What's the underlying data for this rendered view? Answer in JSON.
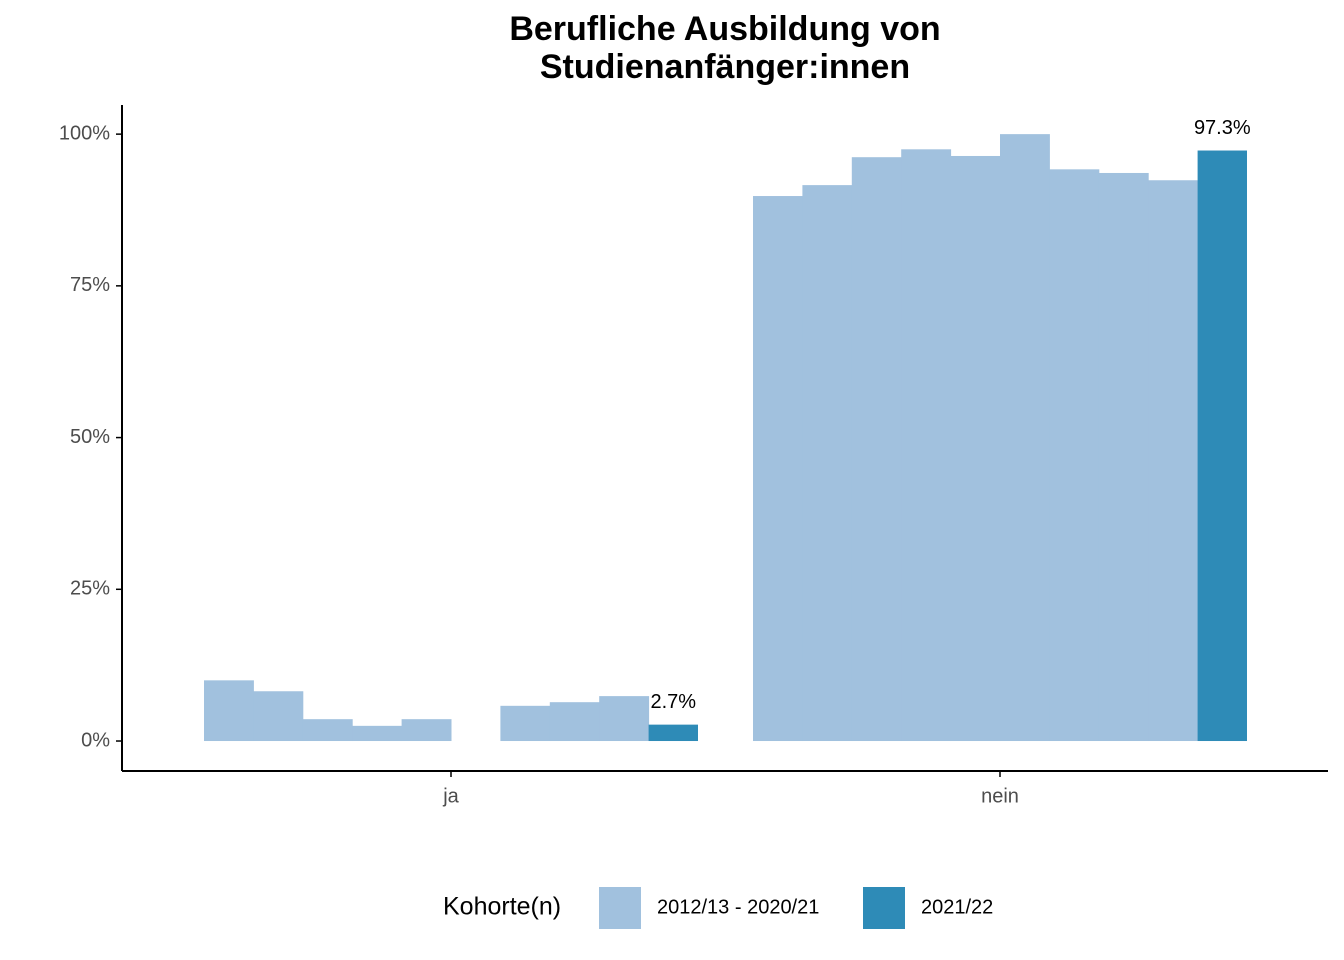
{
  "chart_data": {
    "type": "bar",
    "title": "Berufliche Ausbildung von\nStudienanfänger:innen",
    "categories": [
      "ja",
      "nein"
    ],
    "series": [
      {
        "name": "2012/13 - 2020/21",
        "color": "#a1c1de",
        "values": [
          [
            10.0,
            8.2,
            3.6,
            2.5,
            3.6,
            0,
            5.8,
            6.4,
            7.4
          ],
          [
            89.8,
            91.6,
            96.2,
            97.5,
            96.4,
            100,
            94.2,
            93.6,
            92.4
          ]
        ]
      },
      {
        "name": "2021/22",
        "color": "#2e8bb7",
        "values": [
          2.7,
          97.3
        ],
        "value_labels": [
          "2.7%",
          "97.3%"
        ]
      }
    ],
    "ylim": [
      -4.94,
      104.8
    ],
    "yticks": [
      {
        "value": 0,
        "label": "0%"
      },
      {
        "value": 25,
        "label": "25%"
      },
      {
        "value": 50,
        "label": "50%"
      },
      {
        "value": 75,
        "label": "75%"
      },
      {
        "value": 100,
        "label": "100%"
      }
    ],
    "legend_title": "Kohorte(n)",
    "legend": "bottom"
  }
}
